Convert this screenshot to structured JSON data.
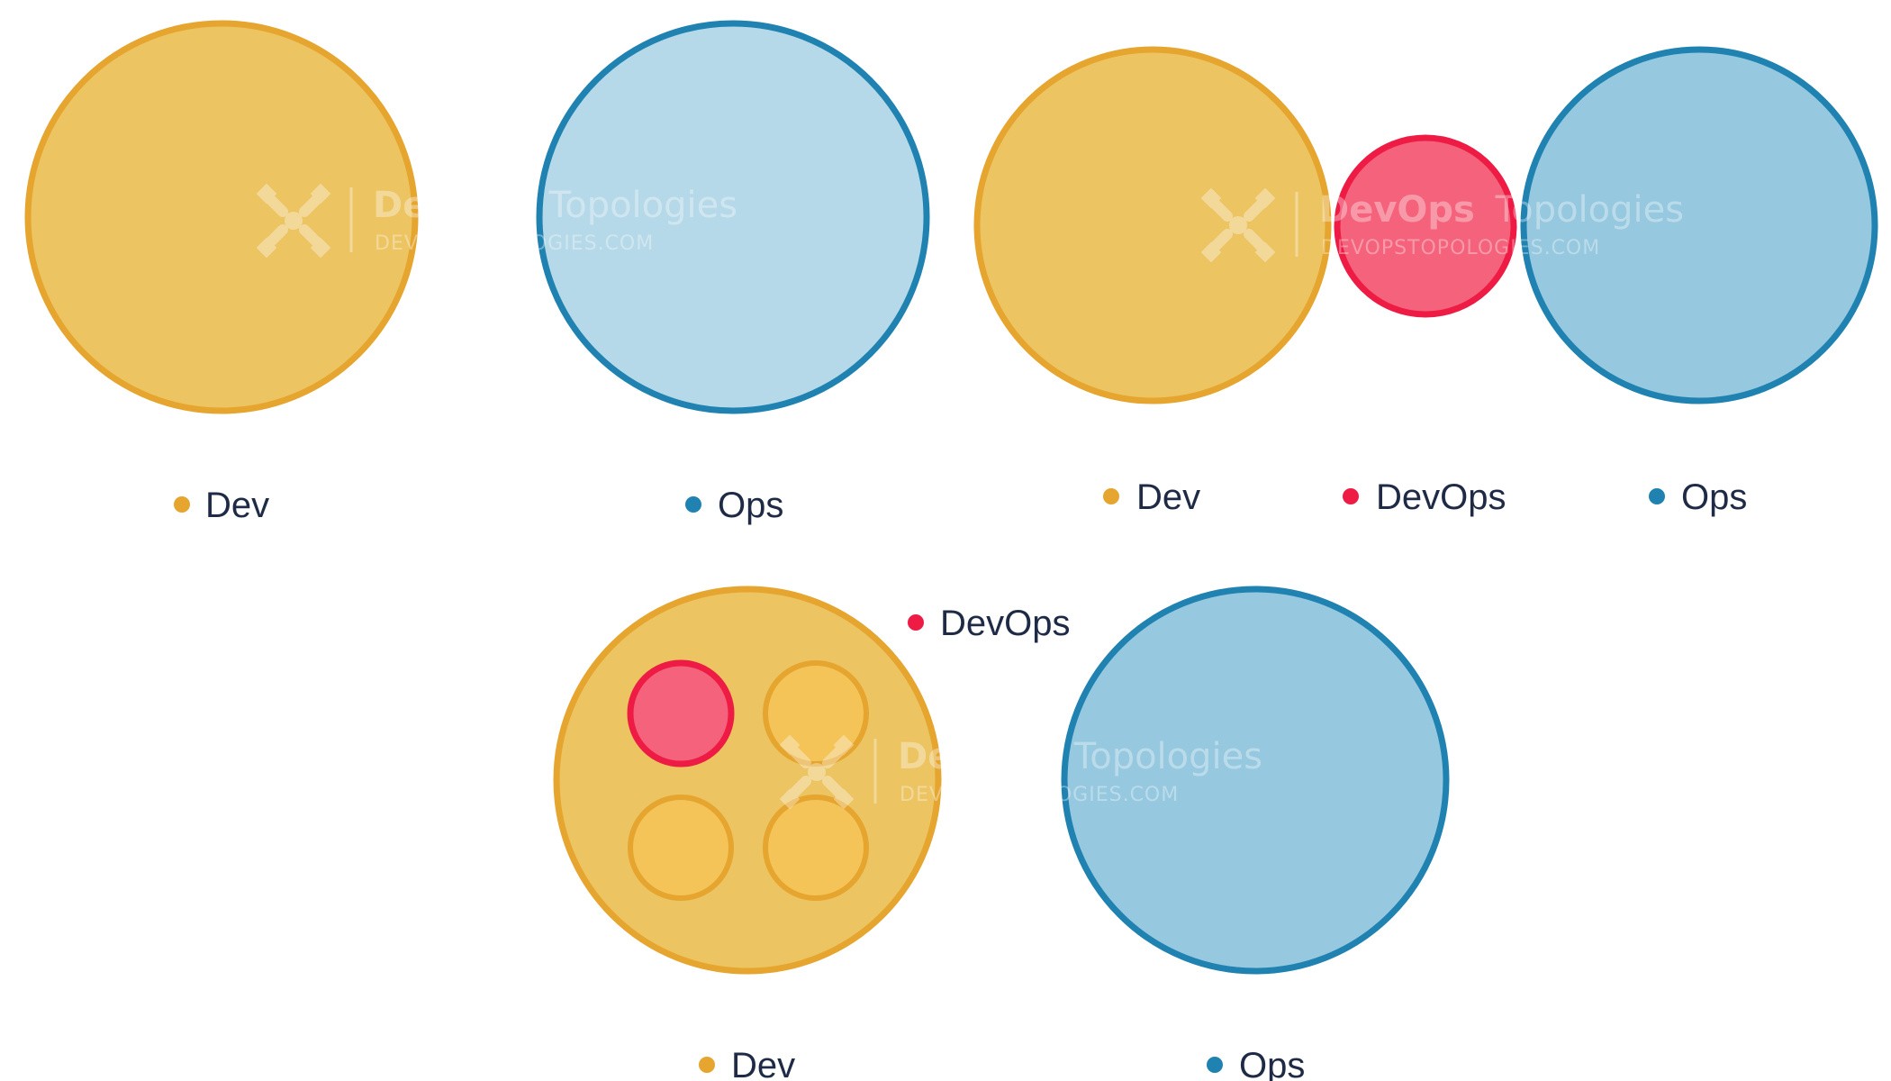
{
  "colors": {
    "dev_fill": "#ecc462",
    "dev_stroke": "#e5a52e",
    "ops_fill_light": "#b5d9e8",
    "ops_fill": "#96c8df",
    "ops_stroke": "#1f82b1",
    "devops_fill": "#f4627b",
    "devops_stroke": "#ee1c45",
    "team_fill": "#f4c458",
    "label_text": "#1f2b46"
  },
  "diagrams": [
    {
      "legend": [
        {
          "label": "Dev",
          "color": "#e5a52e"
        }
      ]
    },
    {
      "legend": [
        {
          "label": "Ops",
          "color": "#1f82b1"
        }
      ]
    },
    {
      "legend": [
        {
          "label": "Dev",
          "color": "#e5a52e"
        },
        {
          "label": "DevOps",
          "color": "#ee1c45"
        },
        {
          "label": "Ops",
          "color": "#1f82b1"
        }
      ]
    },
    {
      "legend": [
        {
          "label": "DevOps",
          "color": "#ee1c45"
        },
        {
          "label": "Dev",
          "color": "#e5a52e"
        },
        {
          "label": "Ops",
          "color": "#1f82b1"
        }
      ]
    }
  ],
  "watermark": {
    "title_bold": "DevOps",
    "title_light": "Topologies",
    "subtitle": "DEVOPSTOPOLOGIES.COM",
    "icon": "devops-topologies-logo-icon"
  }
}
